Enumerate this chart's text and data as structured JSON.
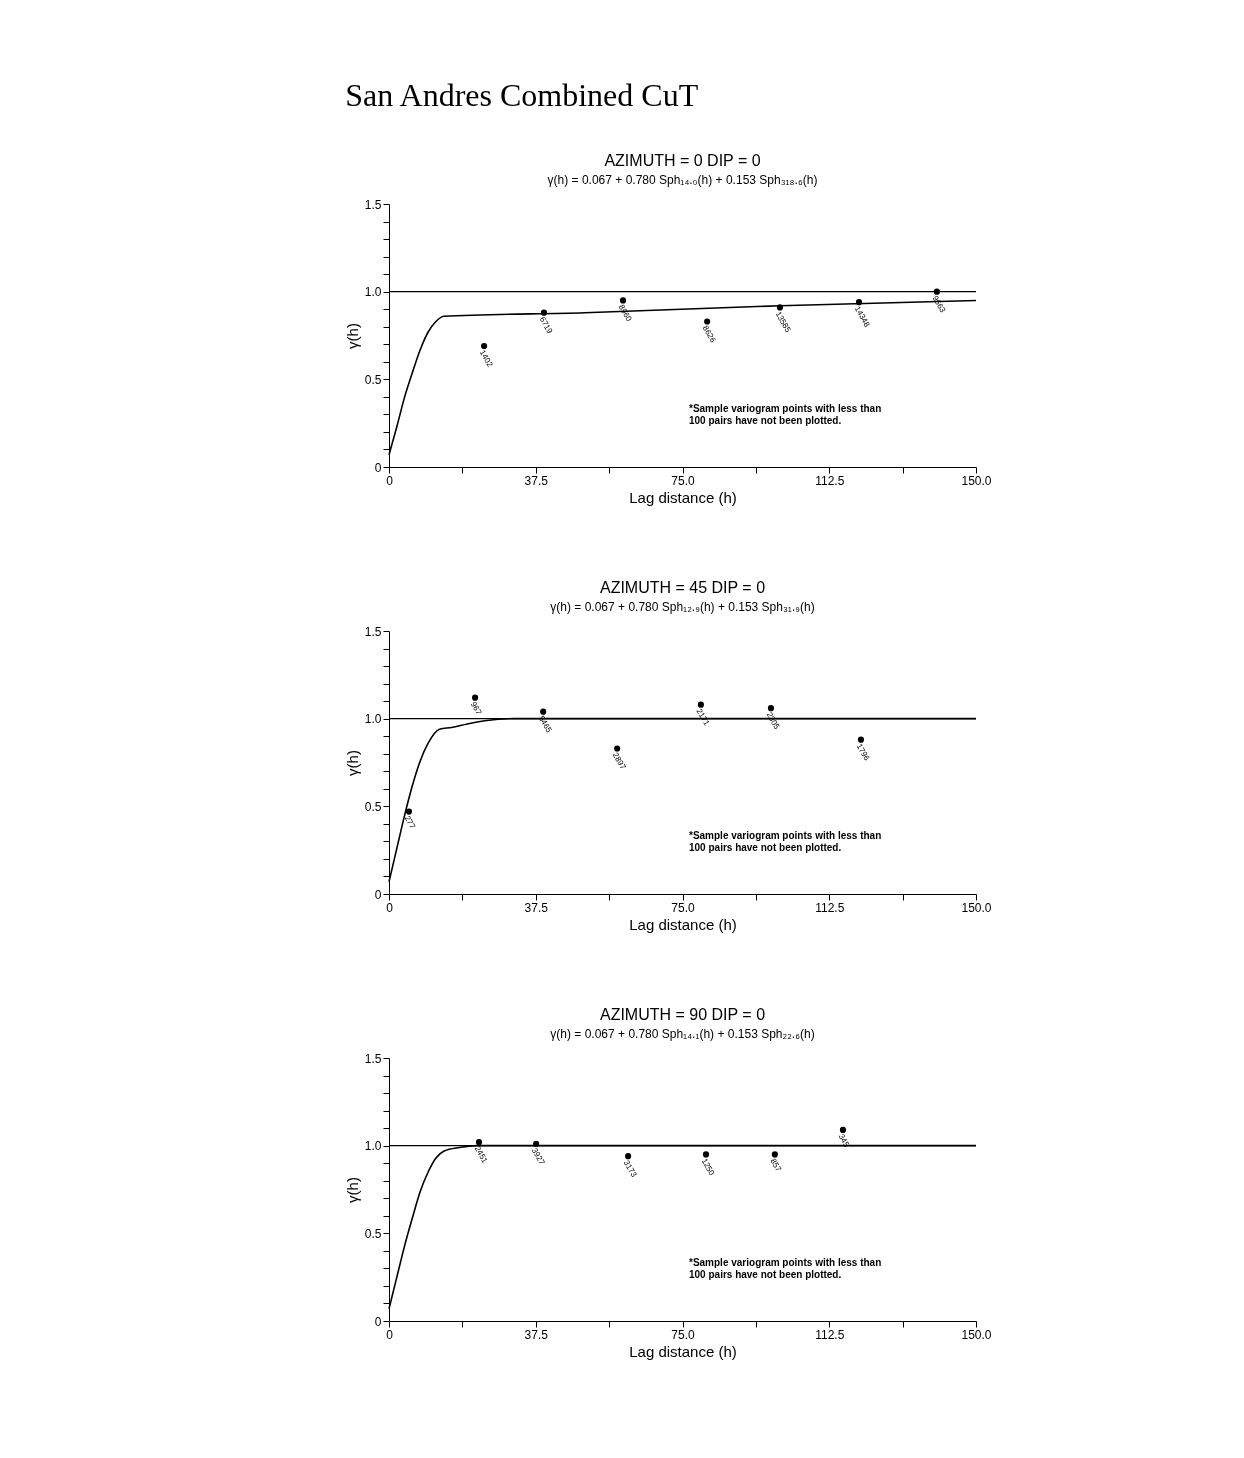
{
  "chart_data": [
    {
      "type": "other",
      "title": "San Andres Combined  CuT"
    },
    {
      "type": "scatter",
      "title": "AZIMUTH = 0   DIP = 0",
      "subtitle": "γ(h) = 0.067 + 0.780 Sph₁₄.₀(h) + 0.153 Sph₃₁₈.₆(h)",
      "xlabel": "Lag distance (h)",
      "ylabel": "γ(h)",
      "xlim": [
        0,
        150
      ],
      "ylim": [
        0,
        1.5
      ],
      "xticks": [
        0,
        {
          "value": 18.75,
          "label": null
        },
        37.5,
        {
          "value": 56.25,
          "label": null
        },
        {
          "value": 75,
          "label": "75.0"
        },
        {
          "value": 93.75,
          "label": null
        },
        112.5,
        {
          "value": 131.25,
          "label": null
        },
        {
          "value": 150,
          "label": "150.0"
        }
      ],
      "yticks": [
        0,
        {
          "value": 0.1,
          "label": null
        },
        {
          "value": 0.2,
          "label": null
        },
        {
          "value": 0.3,
          "label": null
        },
        {
          "value": 0.4,
          "label": null
        },
        0.5,
        {
          "value": 0.6,
          "label": null
        },
        {
          "value": 0.7,
          "label": null
        },
        {
          "value": 0.8,
          "label": null
        },
        {
          "value": 0.9,
          "label": null
        },
        {
          "value": 1,
          "label": "1.0"
        },
        {
          "value": 1.1,
          "label": null
        },
        {
          "value": 1.2,
          "label": null
        },
        {
          "value": 1.3,
          "label": null
        },
        {
          "value": 1.4,
          "label": null
        },
        1.5
      ],
      "grid": false,
      "marker": "circle",
      "series": [
        {
          "type": "scatter",
          "color": "#000000",
          "x": [
            24.3,
            39.6,
            59.8,
            81.3,
            99.9,
            120.1,
            140.0
          ],
          "values": [
            0.69,
            0.88,
            0.95,
            0.83,
            0.91,
            0.94,
            1.0
          ]
        },
        {
          "type": "line",
          "color": "#000000",
          "line_style": "solid",
          "marker": "none",
          "x": [
            0,
            2,
            4,
            6,
            8,
            10,
            12,
            14,
            50,
            100,
            150
          ],
          "values": [
            0.07,
            0.23,
            0.4,
            0.54,
            0.67,
            0.77,
            0.83,
            0.86,
            0.88,
            0.92,
            0.95
          ]
        }
      ],
      "ref_lines": [
        {
          "axis": "y",
          "value": 1,
          "color": "#000000"
        }
      ],
      "annotations": [
        "*Sample variogram points with less than\n100 pairs have not been plotted.",
        {
          "text": "1402",
          "x": 24.3,
          "y": 0.69
        },
        {
          "text": "6719",
          "x": 39.6,
          "y": 0.88
        },
        {
          "text": "8960",
          "x": 59.8,
          "y": 0.95
        },
        {
          "text": "8626",
          "x": 81.3,
          "y": 0.83
        },
        {
          "text": "13585",
          "x": 99.9,
          "y": 0.91
        },
        {
          "text": "14348",
          "x": 120.1,
          "y": 0.94
        },
        {
          "text": "9663",
          "x": 140.0,
          "y": 1.0
        }
      ]
    },
    {
      "type": "scatter",
      "title": "AZIMUTH = 45   DIP = 0",
      "subtitle": "γ(h) = 0.067 + 0.780 Sph₁₂.₉(h) + 0.153 Sph₃₁.₉(h)",
      "xlabel": "Lag distance (h)",
      "ylabel": "γ(h)",
      "xlim": [
        0,
        150
      ],
      "ylim": [
        0,
        1.5
      ],
      "xticks": [
        0,
        {
          "value": 18.75,
          "label": null
        },
        37.5,
        {
          "value": 56.25,
          "label": null
        },
        {
          "value": 75,
          "label": "75.0"
        },
        {
          "value": 93.75,
          "label": null
        },
        112.5,
        {
          "value": 131.25,
          "label": null
        },
        {
          "value": 150,
          "label": "150.0"
        }
      ],
      "yticks": [
        0,
        {
          "value": 0.1,
          "label": null
        },
        {
          "value": 0.2,
          "label": null
        },
        {
          "value": 0.3,
          "label": null
        },
        {
          "value": 0.4,
          "label": null
        },
        0.5,
        {
          "value": 0.6,
          "label": null
        },
        {
          "value": 0.7,
          "label": null
        },
        {
          "value": 0.8,
          "label": null
        },
        {
          "value": 0.9,
          "label": null
        },
        {
          "value": 1,
          "label": "1.0"
        },
        {
          "value": 1.1,
          "label": null
        },
        {
          "value": 1.2,
          "label": null
        },
        {
          "value": 1.3,
          "label": null
        },
        {
          "value": 1.4,
          "label": null
        },
        1.5
      ],
      "grid": false,
      "marker": "circle",
      "series": [
        {
          "type": "scatter",
          "color": "#000000",
          "x": [
            5.1,
            22.0,
            39.4,
            58.3,
            79.7,
            97.6,
            120.6
          ],
          "values": [
            0.47,
            1.12,
            1.04,
            0.83,
            1.08,
            1.06,
            0.88
          ]
        },
        {
          "type": "line",
          "color": "#000000",
          "line_style": "solid",
          "marker": "none",
          "x": [
            0,
            2,
            4,
            6,
            8,
            10,
            12.9,
            16,
            20,
            25,
            31.9,
            150
          ],
          "values": [
            0.07,
            0.26,
            0.45,
            0.62,
            0.76,
            0.86,
            0.94,
            0.95,
            0.97,
            0.99,
            1.0,
            1.0
          ]
        }
      ],
      "ref_lines": [
        {
          "axis": "y",
          "value": 1,
          "color": "#000000"
        }
      ],
      "annotations": [
        "*Sample variogram points with less than\n100 pairs have not been plotted.",
        {
          "text": "277",
          "x": 5.1,
          "y": 0.47
        },
        {
          "text": "967",
          "x": 22.0,
          "y": 1.12
        },
        {
          "text": "5465",
          "x": 39.4,
          "y": 1.04
        },
        {
          "text": "2897",
          "x": 58.3,
          "y": 0.83
        },
        {
          "text": "2171",
          "x": 79.7,
          "y": 1.08
        },
        {
          "text": "2305",
          "x": 97.6,
          "y": 1.06
        },
        {
          "text": "1796",
          "x": 120.6,
          "y": 0.88
        }
      ]
    },
    {
      "type": "scatter",
      "title": "AZIMUTH = 90   DIP = 0",
      "subtitle": "γ(h) = 0.067 + 0.780 Sph₁₄.₁(h) + 0.153 Sph₂₂.₆(h)",
      "xlabel": "Lag distance (h)",
      "ylabel": "γ(h)",
      "xlim": [
        0,
        150
      ],
      "ylim": [
        0,
        1.5
      ],
      "xticks": [
        0,
        {
          "value": 18.75,
          "label": null
        },
        37.5,
        {
          "value": 56.25,
          "label": null
        },
        {
          "value": 75,
          "label": "75.0"
        },
        {
          "value": 93.75,
          "label": null
        },
        112.5,
        {
          "value": 131.25,
          "label": null
        },
        {
          "value": 150,
          "label": "150.0"
        }
      ],
      "yticks": [
        0,
        {
          "value": 0.1,
          "label": null
        },
        {
          "value": 0.2,
          "label": null
        },
        {
          "value": 0.3,
          "label": null
        },
        {
          "value": 0.4,
          "label": null
        },
        0.5,
        {
          "value": 0.6,
          "label": null
        },
        {
          "value": 0.7,
          "label": null
        },
        {
          "value": 0.8,
          "label": null
        },
        {
          "value": 0.9,
          "label": null
        },
        {
          "value": 1,
          "label": "1.0"
        },
        {
          "value": 1.1,
          "label": null
        },
        {
          "value": 1.2,
          "label": null
        },
        {
          "value": 1.3,
          "label": null
        },
        {
          "value": 1.4,
          "label": null
        },
        1.5
      ],
      "grid": false,
      "marker": "circle",
      "series": [
        {
          "type": "scatter",
          "color": "#000000",
          "x": [
            23.0,
            37.6,
            61.1,
            81.0,
            98.6,
            116.0
          ],
          "values": [
            1.02,
            1.01,
            0.94,
            0.95,
            0.95,
            1.09
          ]
        },
        {
          "type": "line",
          "color": "#000000",
          "line_style": "solid",
          "marker": "none",
          "x": [
            0,
            2,
            4,
            6,
            8,
            10,
            12,
            14.1,
            18,
            22.6,
            150
          ],
          "values": [
            0.07,
            0.25,
            0.43,
            0.59,
            0.74,
            0.85,
            0.93,
            0.97,
            0.99,
            1.0,
            1.0
          ]
        }
      ],
      "ref_lines": [
        {
          "axis": "y",
          "value": 1,
          "color": "#000000"
        }
      ],
      "annotations": [
        "*Sample variogram points with less than\n100 pairs have not been plotted.",
        {
          "text": "2451",
          "x": 23.0,
          "y": 1.02
        },
        {
          "text": "3927",
          "x": 37.6,
          "y": 1.01
        },
        {
          "text": "3173",
          "x": 61.1,
          "y": 0.94
        },
        {
          "text": "1250",
          "x": 81.0,
          "y": 0.95
        },
        {
          "text": "857",
          "x": 98.6,
          "y": 0.95
        },
        {
          "text": "345",
          "x": 116.0,
          "y": 1.09
        }
      ]
    }
  ]
}
